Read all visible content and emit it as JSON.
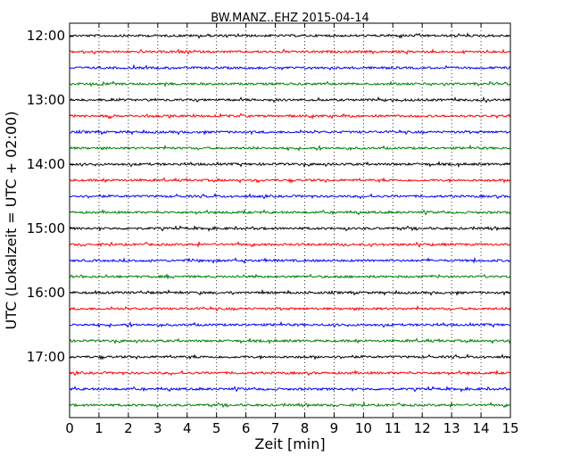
{
  "chart_data": {
    "type": "line",
    "title": "BW.MANZ..EHZ 2015-04-14",
    "xlabel": "Zeit  [min]",
    "ylabel": "UTC (Lokalzeit = UTC + 02:00)",
    "xlim": [
      0,
      15
    ],
    "x_ticks": [
      "0",
      "1",
      "2",
      "3",
      "4",
      "5",
      "6",
      "7",
      "8",
      "9",
      "10",
      "11",
      "12",
      "13",
      "14",
      "15"
    ],
    "y_ticks": [
      "12:00",
      "13:00",
      "14:00",
      "15:00",
      "16:00",
      "17:00"
    ],
    "trace_start_times": [
      "12:00",
      "12:15",
      "12:30",
      "12:45",
      "13:00",
      "13:15",
      "13:30",
      "13:45",
      "14:00",
      "14:15",
      "14:30",
      "14:45",
      "15:00",
      "15:15",
      "15:30",
      "15:45",
      "16:00",
      "16:15",
      "16:30",
      "16:45",
      "17:00",
      "17:15",
      "17:30",
      "17:45"
    ],
    "trace_colors": [
      "#000000",
      "#ff0000",
      "#0000ff",
      "#008000"
    ],
    "grid": "vertical dotted"
  }
}
